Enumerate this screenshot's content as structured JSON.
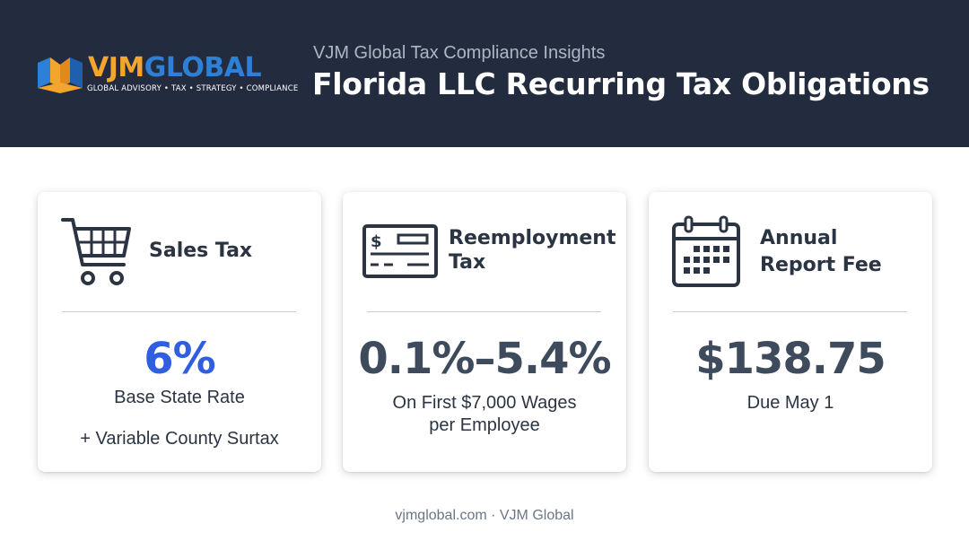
{
  "header": {
    "logo": {
      "word_part1": "VJM",
      "word_part2": "GLOBAL",
      "tagline": "GLOBAL ADVISORY • TAX • STRATEGY • COMPLIANCE"
    },
    "subtitle": "VJM Global Tax Compliance Insights",
    "title": "Florida LLC Recurring Tax Obligations"
  },
  "cards": [
    {
      "icon": "shopping-cart-icon",
      "title_line1": "Sales Tax",
      "title_line2": "",
      "value": "6%",
      "value_color": "#2f5fe0",
      "desc_line1": "Base State Rate",
      "desc_line2": "+ Variable County Surtax"
    },
    {
      "icon": "check-icon",
      "title_line1": "Reemployment",
      "title_line2": "Tax",
      "value": "0.1%–5.4%",
      "value_color": "#3e4b5c",
      "desc_line1": "On First $7,000 Wages",
      "desc_line2": "per Employee"
    },
    {
      "icon": "calendar-icon",
      "title_line1": "Annual",
      "title_line2": "Report Fee",
      "value": "$138.75",
      "value_color": "#3e4b5c",
      "desc_line1": "Due May 1",
      "desc_line2": ""
    }
  ],
  "footer": {
    "text": "vjmglobal.com · VJM Global"
  },
  "colors": {
    "header_bg": "#232c3e",
    "accent_blue": "#2f5fe0",
    "logo_orange": "#f4a52c",
    "logo_blue": "#2e7fd6"
  }
}
